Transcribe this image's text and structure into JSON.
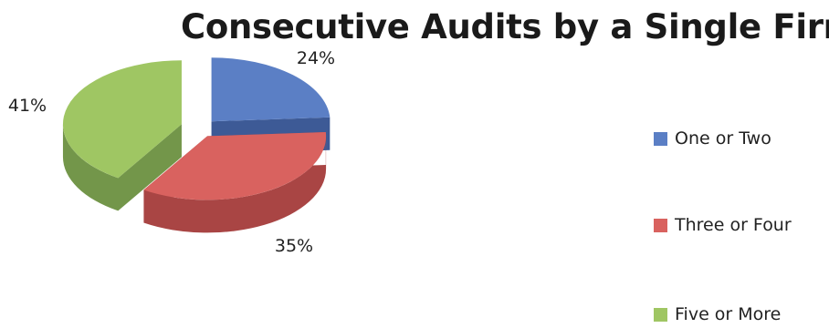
{
  "chart_data": {
    "type": "pie",
    "title": "Consecutive Audits by a Single Firm",
    "categories": [
      "One or Two",
      "Three or Four",
      "Five or More"
    ],
    "values": [
      24,
      35,
      41
    ],
    "labels": [
      "24%",
      "35%",
      "41%"
    ],
    "colors": [
      "#5b7fc5",
      "#d9625f",
      "#9fc663"
    ],
    "side_colors": [
      "#3d5a96",
      "#a94544",
      "#73964a"
    ],
    "exploded": true,
    "three_d": true,
    "legend_position": "right"
  }
}
